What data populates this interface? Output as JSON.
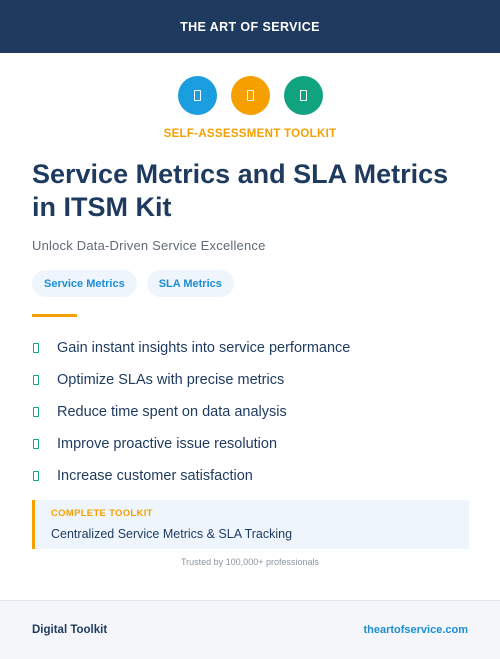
{
  "header": {
    "brand": "THE ART OF SERVICE"
  },
  "icons": [
    {
      "name": "blue-square-icon",
      "color": "#1b9ee0"
    },
    {
      "name": "orange-square-icon",
      "color": "#f5a000"
    },
    {
      "name": "green-square-icon",
      "color": "#10a37f"
    }
  ],
  "kicker": "SELF-ASSESSMENT TOOLKIT",
  "title": "Service Metrics and SLA Metrics in ITSM Kit",
  "subtitle": "Unlock Data-Driven Service Excellence",
  "tags": [
    "Service Metrics",
    "SLA Metrics"
  ],
  "benefits": [
    "Gain instant insights into service performance",
    "Optimize SLAs with precise metrics",
    "Reduce time spent on data analysis",
    "Improve proactive issue resolution",
    "Increase customer satisfaction"
  ],
  "callout": {
    "label": "COMPLETE TOOLKIT",
    "text": "Centralized Service Metrics & SLA Tracking"
  },
  "trusted": "Trusted by 100,000+ professionals",
  "footer": {
    "left": "Digital Toolkit",
    "right": "theartofservice.com"
  }
}
